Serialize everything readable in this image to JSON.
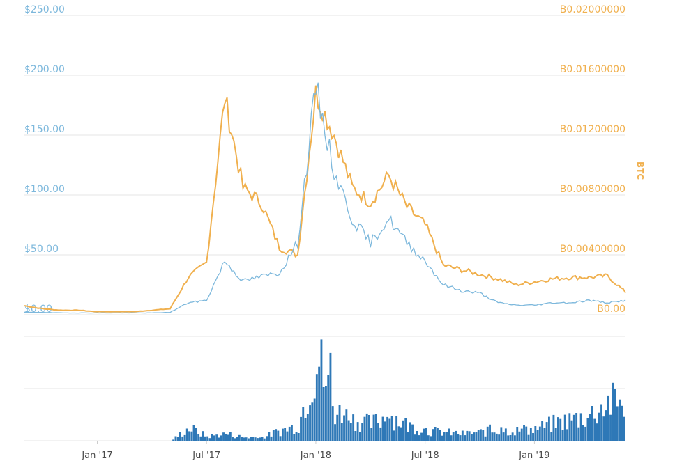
{
  "chart_data": {
    "type": "line",
    "title": "",
    "y_left": {
      "unit": "USD",
      "ticks": [
        "$0.00",
        "$50.00",
        "$100.00",
        "$150.00",
        "$200.00",
        "$250.00"
      ],
      "range": [
        0,
        250
      ]
    },
    "y_right": {
      "label": "BTC",
      "ticks": [
        "B0.00",
        "B0.00400000",
        "B0.00800000",
        "B0.01200000",
        "B0.01600000",
        "B0.02000000"
      ],
      "range": [
        0,
        0.02
      ]
    },
    "x_axis": {
      "ticks": [
        "Jan '17",
        "Jul '17",
        "Jan '18",
        "Jul '18",
        "Jan '19"
      ],
      "range": [
        "2016-09",
        "2019-06"
      ]
    },
    "grid": true,
    "legend": "none",
    "colors": {
      "usd": "#7db8dc",
      "btc": "#f0b04e",
      "volume": "#2e78b7"
    },
    "series": [
      {
        "axis": "left",
        "x": [
          "2016-09",
          "2016-10",
          "2016-11",
          "2016-12",
          "2017-01",
          "2017-02",
          "2017-03",
          "2017-04",
          "2017-05",
          "2017-06",
          "2017-07",
          "2017-08",
          "2017-09",
          "2017-10",
          "2017-11",
          "2017-12",
          "2018-01",
          "2018-02",
          "2018-03",
          "2018-04",
          "2018-05",
          "2018-06",
          "2018-07",
          "2018-08",
          "2018-09",
          "2018-10",
          "2018-11",
          "2018-12",
          "2019-01",
          "2019-02",
          "2019-03",
          "2019-04",
          "2019-05",
          "2019-06"
        ],
        "values": [
          2,
          2,
          1.5,
          1.5,
          1.5,
          1.5,
          1.5,
          1.5,
          2,
          10,
          12,
          45,
          28,
          32,
          35,
          60,
          190,
          120,
          80,
          60,
          80,
          60,
          45,
          25,
          20,
          18,
          10,
          8,
          8,
          10,
          10,
          12,
          10,
          12
        ]
      },
      {
        "axis": "right",
        "x": [
          "2016-09",
          "2016-10",
          "2016-11",
          "2016-12",
          "2017-01",
          "2017-02",
          "2017-03",
          "2017-04",
          "2017-05",
          "2017-06",
          "2017-07",
          "2017-08",
          "2017-09",
          "2017-10",
          "2017-11",
          "2017-12",
          "2018-01",
          "2018-02",
          "2018-03",
          "2018-04",
          "2018-05",
          "2018-06",
          "2018-07",
          "2018-08",
          "2018-09",
          "2018-10",
          "2018-11",
          "2018-12",
          "2019-01",
          "2019-02",
          "2019-03",
          "2019-04",
          "2019-05",
          "2019-06"
        ],
        "values": [
          0.0006,
          0.0004,
          0.0003,
          0.0003,
          0.0002,
          0.0002,
          0.0002,
          0.0003,
          0.0004,
          0.0025,
          0.0035,
          0.0145,
          0.0085,
          0.0075,
          0.0045,
          0.004,
          0.0148,
          0.012,
          0.0085,
          0.0075,
          0.0093,
          0.0072,
          0.006,
          0.0033,
          0.003,
          0.0027,
          0.0024,
          0.002,
          0.0022,
          0.0024,
          0.0025,
          0.0025,
          0.0026,
          0.0015
        ]
      }
    ],
    "volume": {
      "x": [
        "2016-09",
        "2016-10",
        "2016-11",
        "2016-12",
        "2017-01",
        "2017-02",
        "2017-03",
        "2017-04",
        "2017-05",
        "2017-06",
        "2017-07",
        "2017-08",
        "2017-09",
        "2017-10",
        "2017-11",
        "2017-12",
        "2018-01",
        "2018-02",
        "2018-03",
        "2018-04",
        "2018-05",
        "2018-06",
        "2018-07",
        "2018-08",
        "2018-09",
        "2018-10",
        "2018-11",
        "2018-12",
        "2019-01",
        "2019-02",
        "2019-03",
        "2019-04",
        "2019-05",
        "2019-06"
      ],
      "values": [
        0,
        0,
        0,
        0,
        0,
        0,
        0,
        0,
        0,
        15,
        5,
        8,
        4,
        4,
        12,
        18,
        100,
        35,
        25,
        20,
        30,
        18,
        12,
        10,
        8,
        10,
        12,
        12,
        14,
        20,
        25,
        30,
        45,
        45
      ]
    }
  }
}
